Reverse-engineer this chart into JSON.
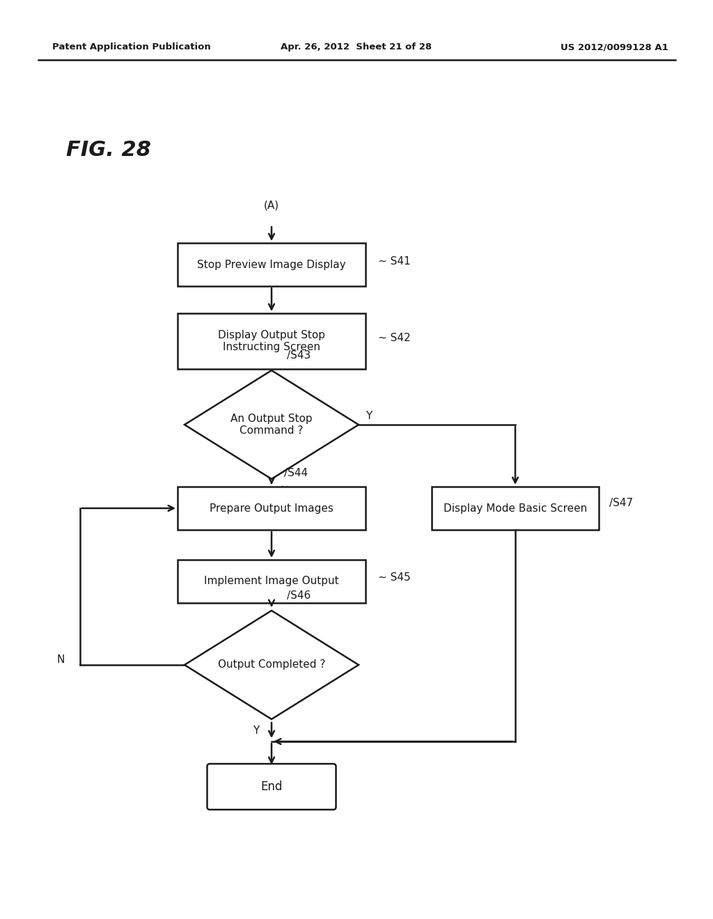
{
  "header_left": "Patent Application Publication",
  "header_mid": "Apr. 26, 2012  Sheet 21 of 28",
  "header_right": "US 2012/0099128 A1",
  "fig_label": "FIG. 28",
  "bg_color": "#ffffff",
  "line_color": "#1a1a1a",
  "text_color": "#1a1a1a",
  "nodes": {
    "start_label": "(A)",
    "s41_text": "Stop Preview Image Display",
    "s41_label": "S41",
    "s42_text": "Display Output Stop\nInstructing Screen",
    "s42_label": "S42",
    "s43_text": "An Output Stop\nCommand ?",
    "s43_label": "S43",
    "s44_text": "Prepare Output Images",
    "s44_label": "S44",
    "s45_text": "Implement Image Output",
    "s45_label": "S45",
    "s46_text": "Output Completed ?",
    "s46_label": "S46",
    "s47_text": "Display Mode Basic Screen",
    "s47_label": "S47",
    "end_text": "End"
  }
}
